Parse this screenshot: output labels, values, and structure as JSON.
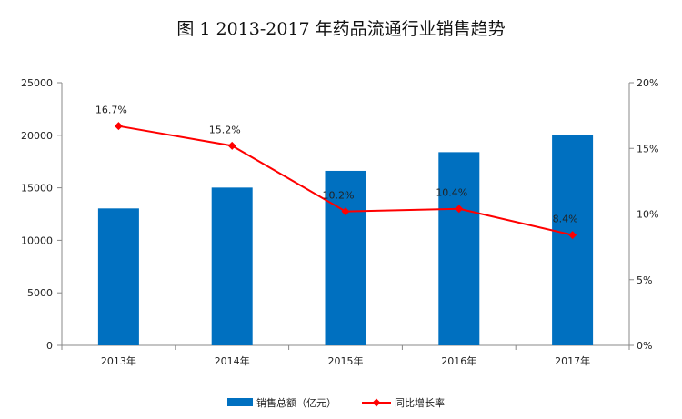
{
  "chart_data": {
    "type": "bar+line",
    "title": "图 1   2013-2017 年药品流通行业销售趋势",
    "categories": [
      "2013年",
      "2014年",
      "2015年",
      "2016年",
      "2017年"
    ],
    "series": [
      {
        "name": "销售总额（亿元）",
        "type": "bar",
        "axis": "left",
        "color": "#0070C0",
        "values": [
          13036,
          15021,
          16613,
          18393,
          20016
        ]
      },
      {
        "name": "同比增长率",
        "type": "line",
        "axis": "right",
        "color": "#FF0000",
        "values": [
          16.7,
          15.2,
          10.2,
          10.4,
          8.4
        ],
        "labels": [
          "16.7%",
          "15.2%",
          "10.2%",
          "10.4%",
          "8.4%"
        ]
      }
    ],
    "y_left": {
      "ylim": [
        0,
        25000
      ],
      "ticks": [
        "0",
        "5000",
        "10000",
        "15000",
        "20000",
        "25000"
      ]
    },
    "y_right": {
      "ylim": [
        0,
        20
      ],
      "ticks": [
        "0%",
        "5%",
        "10%",
        "15%",
        "20%"
      ]
    },
    "grid": false,
    "legend_position": "bottom"
  }
}
